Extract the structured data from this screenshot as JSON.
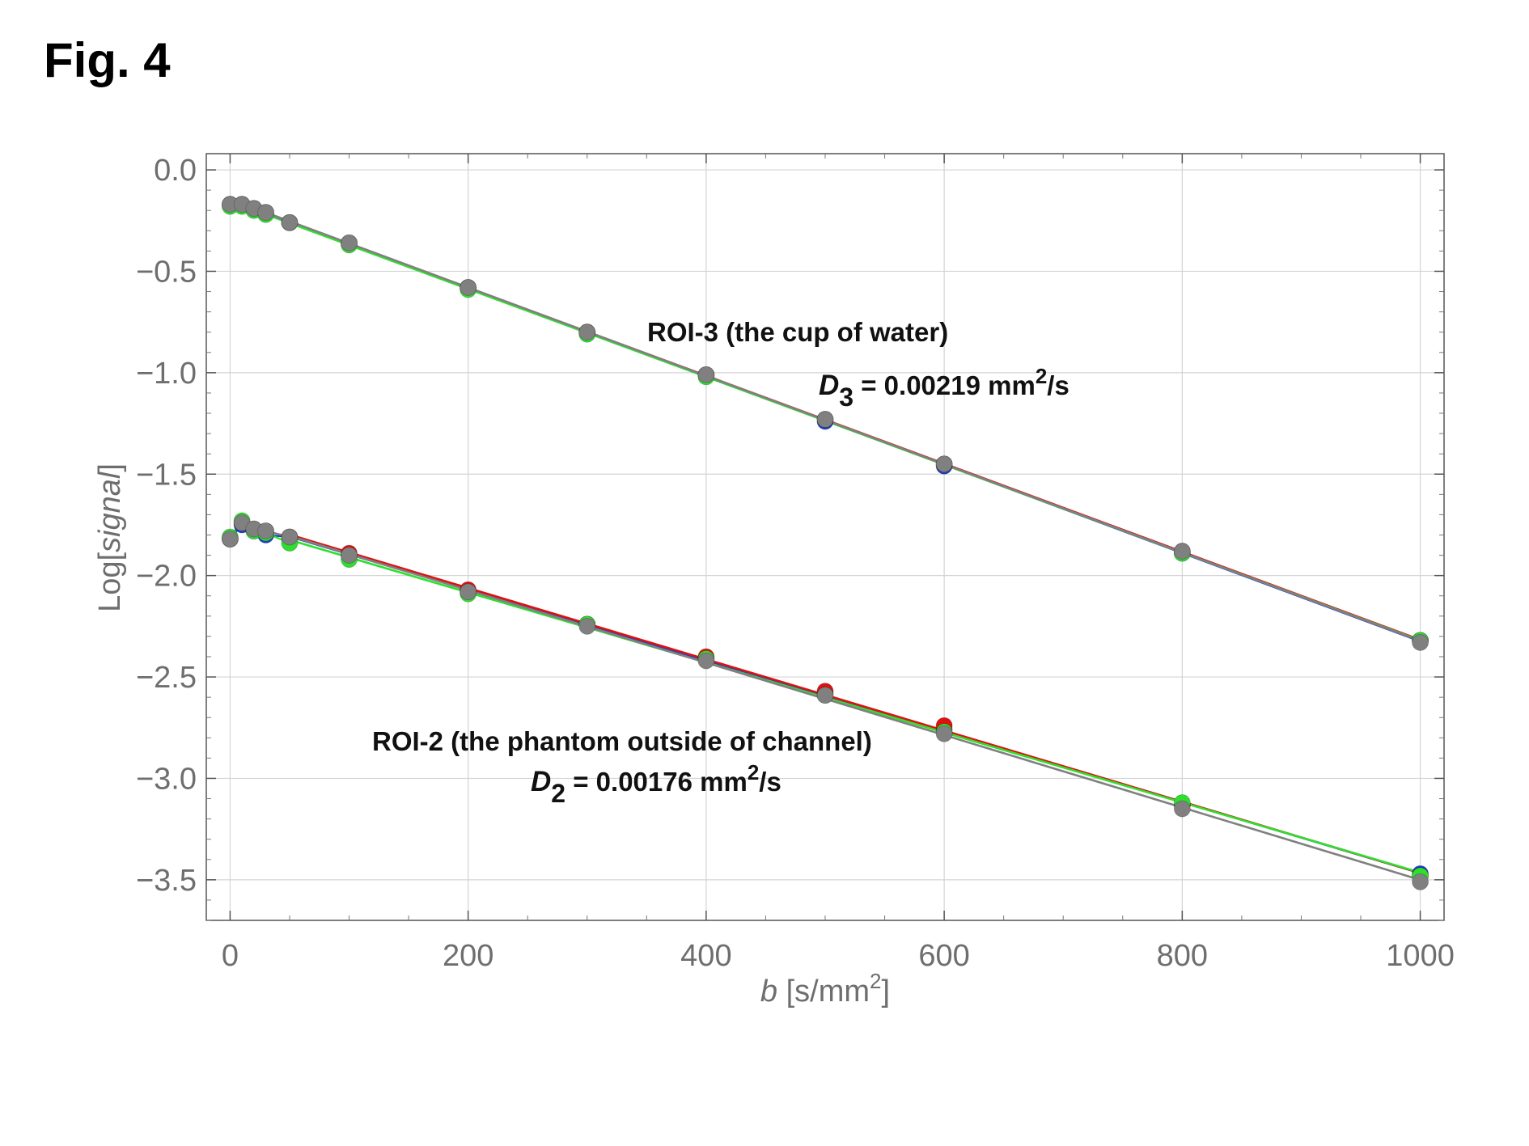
{
  "figure": {
    "title": "Fig. 4"
  },
  "chart_data": {
    "type": "scatter",
    "title": "",
    "xlabel": {
      "italic": "b",
      "text": " [s/mm",
      "sup": "2",
      "close": "]"
    },
    "ylabel": {
      "prefix": "Log[",
      "italic": "signal",
      "suffix": "]"
    },
    "xlim": [
      -20,
      1020
    ],
    "ylim": [
      -3.7,
      0.08
    ],
    "x_ticks": [
      0,
      200,
      400,
      600,
      800,
      1000
    ],
    "x_tick_labels": [
      "0",
      "200",
      "400",
      "600",
      "800",
      "1000"
    ],
    "y_ticks": [
      0.0,
      -0.5,
      -1.0,
      -1.5,
      -2.0,
      -2.5,
      -3.0,
      -3.5
    ],
    "y_tick_labels": [
      "0.0",
      "−0.5",
      "−1.0",
      "−1.5",
      "−2.0",
      "−2.5",
      "−3.0",
      "−3.5"
    ],
    "grid": true,
    "x": [
      0,
      10,
      20,
      30,
      50,
      100,
      200,
      300,
      400,
      500,
      600,
      800,
      1000
    ],
    "series": [
      {
        "name": "ROI-3 blue",
        "color": "#1f3fd0",
        "group": "ROI-3",
        "values": [
          -0.17,
          -0.17,
          -0.19,
          -0.21,
          -0.26,
          -0.36,
          -0.58,
          -0.8,
          -1.01,
          -1.24,
          -1.46,
          -1.89,
          -2.32
        ]
      },
      {
        "name": "ROI-3 red",
        "color": "#e01010",
        "group": "ROI-3",
        "values": [
          -0.17,
          -0.17,
          -0.19,
          -0.21,
          -0.26,
          -0.36,
          -0.58,
          -0.8,
          -1.01,
          -1.23,
          -1.45,
          -1.88,
          -2.32
        ]
      },
      {
        "name": "ROI-3 green",
        "color": "#2ee02e",
        "group": "ROI-3",
        "values": [
          -0.18,
          -0.18,
          -0.2,
          -0.22,
          -0.26,
          -0.37,
          -0.59,
          -0.81,
          -1.02,
          -1.23,
          -1.45,
          -1.89,
          -2.32
        ]
      },
      {
        "name": "ROI-3 gray",
        "color": "#808080",
        "group": "ROI-3",
        "values": [
          -0.17,
          -0.17,
          -0.19,
          -0.21,
          -0.26,
          -0.36,
          -0.58,
          -0.8,
          -1.01,
          -1.23,
          -1.45,
          -1.88,
          -2.33
        ]
      },
      {
        "name": "ROI-2 blue",
        "color": "#1f3fd0",
        "group": "ROI-2",
        "values": [
          -1.82,
          -1.75,
          -1.78,
          -1.8,
          -1.81,
          -1.9,
          -2.08,
          -2.24,
          -2.41,
          -2.58,
          -2.76,
          -3.13,
          -3.47
        ]
      },
      {
        "name": "ROI-2 red",
        "color": "#e01010",
        "group": "ROI-2",
        "values": [
          -1.82,
          -1.74,
          -1.77,
          -1.78,
          -1.81,
          -1.89,
          -2.07,
          -2.24,
          -2.4,
          -2.57,
          -2.74,
          -3.13,
          -3.48
        ]
      },
      {
        "name": "ROI-2 green",
        "color": "#2ee02e",
        "group": "ROI-2",
        "values": [
          -1.81,
          -1.73,
          -1.78,
          -1.79,
          -1.84,
          -1.92,
          -2.09,
          -2.24,
          -2.41,
          -2.59,
          -2.77,
          -3.12,
          -3.48
        ]
      },
      {
        "name": "ROI-2 gray",
        "color": "#808080",
        "group": "ROI-2",
        "values": [
          -1.82,
          -1.74,
          -1.77,
          -1.78,
          -1.81,
          -1.9,
          -2.08,
          -2.25,
          -2.42,
          -2.59,
          -2.78,
          -3.15,
          -3.51
        ]
      }
    ],
    "annotations": [
      {
        "id": "roi3-label",
        "text": "ROI-3 (the cup of water)"
      },
      {
        "id": "roi3-d",
        "var": "D",
        "sub": "3",
        "text": " = 0.00219 mm",
        "sup": "2",
        "tail": "/s"
      },
      {
        "id": "roi2-label",
        "text": "ROI-2 (the phantom outside of channel)"
      },
      {
        "id": "roi2-d",
        "var": "D",
        "sub": "2",
        "text": " = 0.00176 mm",
        "sup": "2",
        "tail": "/s"
      }
    ]
  }
}
